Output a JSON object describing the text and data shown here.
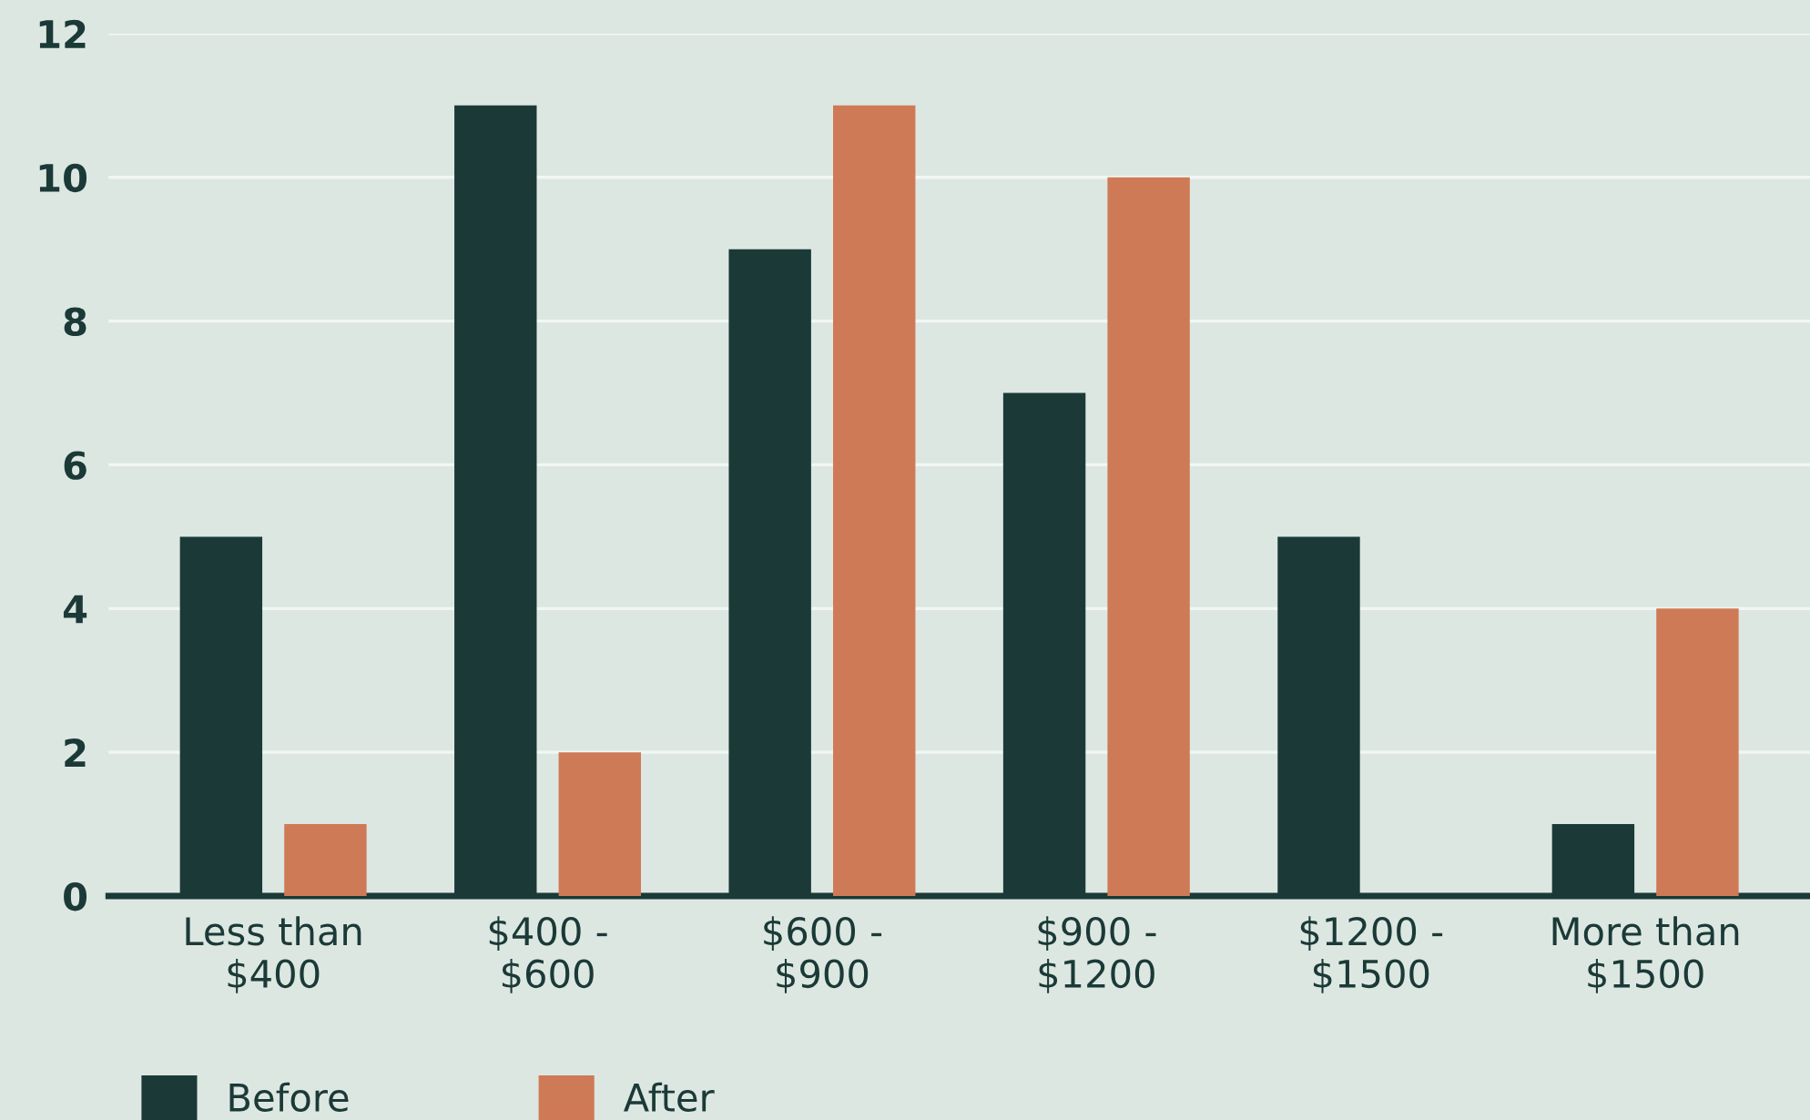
{
  "chart_data": {
    "type": "bar",
    "categories": [
      "Less than\n$400",
      "$400 -\n$600",
      "$600 -\n$900",
      "$900 -\n$1200",
      "$1200 -\n$1500",
      "More than\n$1500"
    ],
    "series": [
      {
        "name": "Before",
        "color": "#1b3a37",
        "values": [
          5,
          11,
          9,
          7,
          5,
          1
        ]
      },
      {
        "name": "After",
        "color": "#cf7a56",
        "values": [
          1,
          2,
          11,
          10,
          null,
          4
        ]
      }
    ],
    "ylim": [
      0,
      12
    ],
    "yticks": [
      0,
      2,
      4,
      6,
      8,
      10,
      12
    ],
    "grid": "y",
    "legend": "bottom left"
  }
}
